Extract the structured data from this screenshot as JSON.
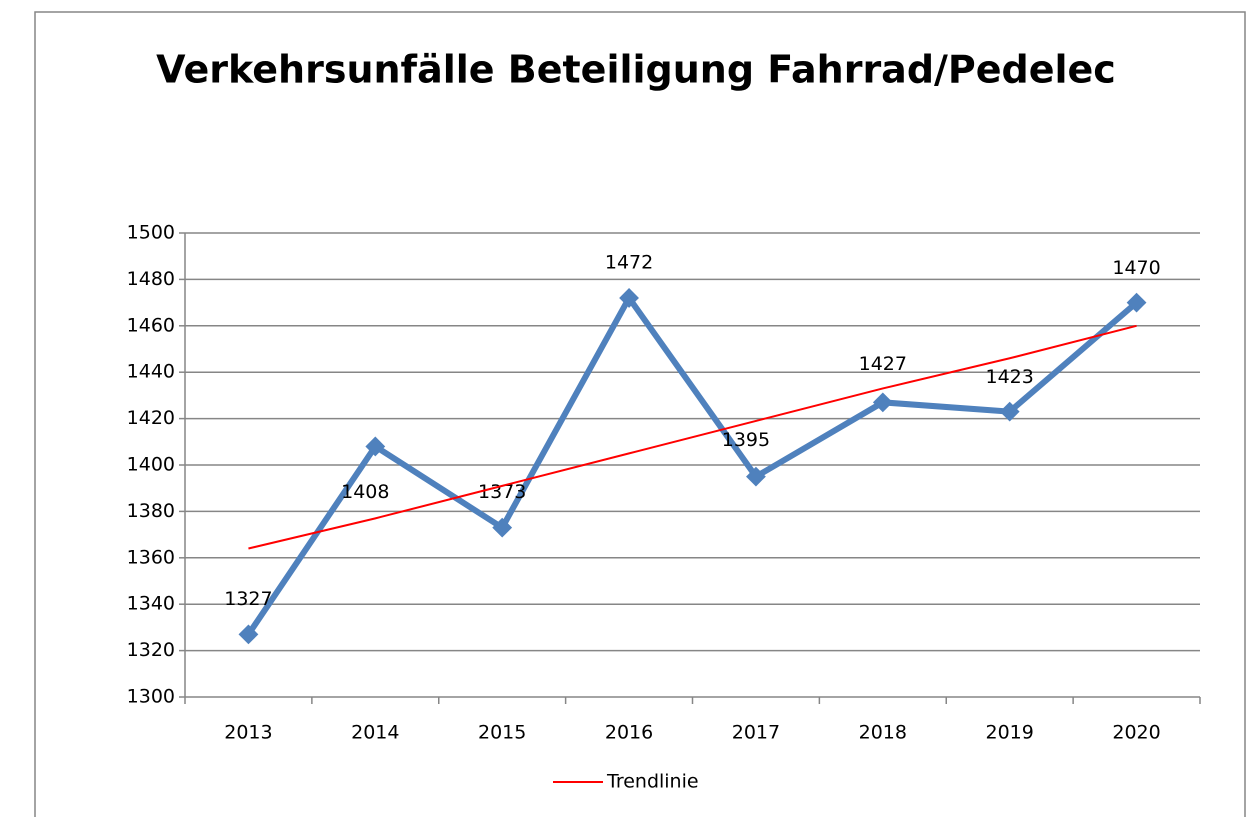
{
  "chart_data": {
    "type": "line",
    "title": "Verkehrsunfälle Beteiligung Fahrrad/Pedelec",
    "categories": [
      "2013",
      "2014",
      "2015",
      "2016",
      "2017",
      "2018",
      "2019",
      "2020"
    ],
    "series": [
      {
        "color": "#4f81bd",
        "values": [
          1327,
          1408,
          1373,
          1472,
          1395,
          1427,
          1423,
          1470
        ]
      },
      {
        "name": "Trendlinie",
        "color": "#ff0000",
        "values": [
          1364,
          1377,
          1391,
          1405,
          1419,
          1433,
          1446,
          1460
        ]
      }
    ],
    "ylim": [
      1300,
      1500
    ],
    "yticks": [
      1300,
      1320,
      1340,
      1360,
      1380,
      1400,
      1420,
      1440,
      1460,
      1480,
      1500
    ],
    "grid": true,
    "legend": "bottom"
  }
}
